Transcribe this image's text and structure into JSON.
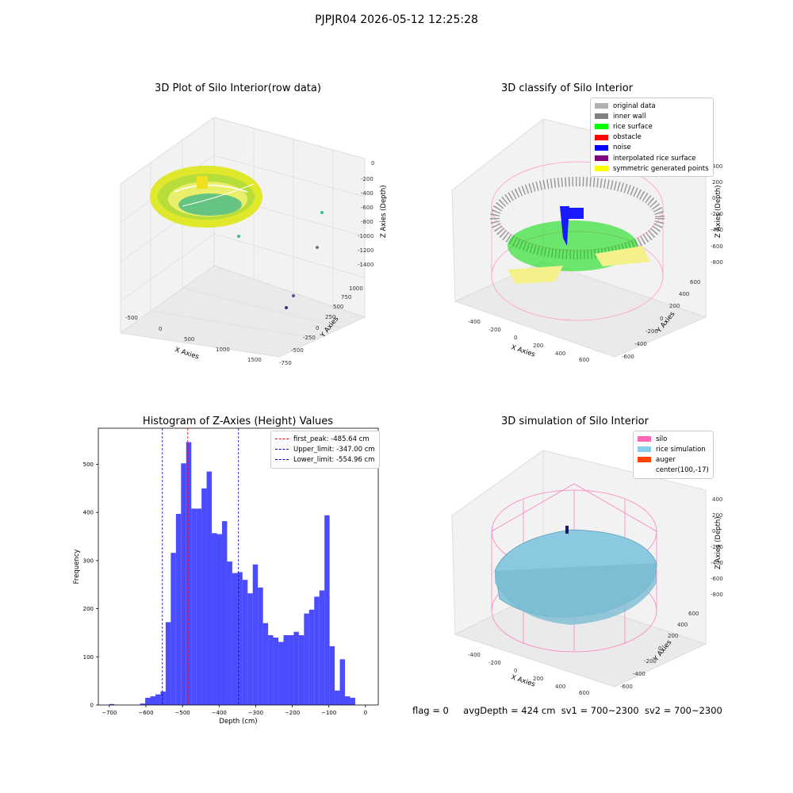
{
  "suptitle": "PJPJR04 2026-05-12 12:25:28",
  "panels": {
    "raw": {
      "title": "3D Plot of Silo Interior(row data)",
      "xlabel": "X Axies",
      "ylabel": "Y Axies",
      "zlabel": "Z Axies (Depth)",
      "xticks": [
        "-500",
        "0",
        "500",
        "1000",
        "1500"
      ],
      "yticks": [
        "-750",
        "-500",
        "-250",
        "0",
        "250",
        "500",
        "750",
        "1000"
      ],
      "zticks": [
        "0",
        "-200",
        "-400",
        "-600",
        "-800",
        "-1000",
        "-1200",
        "-1400"
      ]
    },
    "classify": {
      "title": "3D classify of Silo Interior",
      "xlabel": "X Axies",
      "ylabel": "Y Axies",
      "zlabel": "Z Axies (Depth)",
      "xticks": [
        "-400",
        "-200",
        "0",
        "200",
        "400",
        "600"
      ],
      "yticks": [
        "-600",
        "-400",
        "-200",
        "0",
        "200",
        "400",
        "600"
      ],
      "zticks": [
        "400",
        "200",
        "0",
        "-200",
        "-400",
        "-600",
        "-800"
      ],
      "legend": [
        {
          "label": "original data",
          "color": "#b0b0b0"
        },
        {
          "label": "inner wall",
          "color": "#808080"
        },
        {
          "label": "rice surface",
          "color": "#00ff00"
        },
        {
          "label": "obstacle",
          "color": "#ff0000"
        },
        {
          "label": "noise",
          "color": "#0000ff"
        },
        {
          "label": "interpolated rice surface",
          "color": "#800080"
        },
        {
          "label": "symmetric generated points",
          "color": "#ffff00"
        }
      ]
    },
    "simulation": {
      "title": "3D simulation of Silo Interior",
      "xlabel": "X Axies",
      "ylabel": "Y Axies",
      "zlabel": "Z Axies (Depth)",
      "xticks": [
        "-400",
        "-200",
        "0",
        "200",
        "400",
        "600"
      ],
      "yticks": [
        "-600",
        "-400",
        "-200",
        "0",
        "200",
        "400",
        "600"
      ],
      "zticks": [
        "400",
        "200",
        "0",
        "-200",
        "-400",
        "-600",
        "-800"
      ],
      "legend": [
        {
          "label": "silo",
          "color": "#ff69b4"
        },
        {
          "label": "rice simulation",
          "color": "#87ceeb"
        },
        {
          "label": "auger",
          "color": "#ff4500"
        },
        {
          "label": "center(100,-17)",
          "color": "#ffffff"
        }
      ]
    }
  },
  "chart_data": {
    "type": "bar",
    "title": "Histogram of Z-Axies (Height) Values",
    "xlabel": "Depth (cm)",
    "ylabel": "Frequency",
    "xlim": [
      -730,
      35
    ],
    "ylim": [
      0,
      575
    ],
    "xticks": [
      -700,
      -600,
      -500,
      -400,
      -300,
      -200,
      -100,
      0
    ],
    "yticks": [
      0,
      100,
      200,
      300,
      400,
      500
    ],
    "bar_color": "#0000ff",
    "bins": [
      {
        "x0": -700,
        "x1": -686,
        "v": 2
      },
      {
        "x0": -686,
        "x1": -672,
        "v": 0
      },
      {
        "x0": -672,
        "x1": -658,
        "v": 0
      },
      {
        "x0": -658,
        "x1": -644,
        "v": 0
      },
      {
        "x0": -644,
        "x1": -630,
        "v": 0
      },
      {
        "x0": -630,
        "x1": -616,
        "v": 0
      },
      {
        "x0": -616,
        "x1": -602,
        "v": 3
      },
      {
        "x0": -602,
        "x1": -588,
        "v": 15
      },
      {
        "x0": -588,
        "x1": -574,
        "v": 18
      },
      {
        "x0": -574,
        "x1": -560,
        "v": 22
      },
      {
        "x0": -560,
        "x1": -546,
        "v": 28
      },
      {
        "x0": -546,
        "x1": -532,
        "v": 172
      },
      {
        "x0": -532,
        "x1": -518,
        "v": 316
      },
      {
        "x0": -518,
        "x1": -504,
        "v": 397
      },
      {
        "x0": -504,
        "x1": -490,
        "v": 502
      },
      {
        "x0": -490,
        "x1": -476,
        "v": 546
      },
      {
        "x0": -476,
        "x1": -462,
        "v": 408
      },
      {
        "x0": -462,
        "x1": -448,
        "v": 408
      },
      {
        "x0": -448,
        "x1": -434,
        "v": 450
      },
      {
        "x0": -434,
        "x1": -420,
        "v": 485
      },
      {
        "x0": -420,
        "x1": -406,
        "v": 357
      },
      {
        "x0": -406,
        "x1": -392,
        "v": 355
      },
      {
        "x0": -392,
        "x1": -378,
        "v": 382
      },
      {
        "x0": -378,
        "x1": -364,
        "v": 298
      },
      {
        "x0": -364,
        "x1": -350,
        "v": 274
      },
      {
        "x0": -350,
        "x1": -336,
        "v": 276
      },
      {
        "x0": -336,
        "x1": -322,
        "v": 260
      },
      {
        "x0": -322,
        "x1": -308,
        "v": 232
      },
      {
        "x0": -308,
        "x1": -294,
        "v": 292
      },
      {
        "x0": -294,
        "x1": -280,
        "v": 244
      },
      {
        "x0": -280,
        "x1": -266,
        "v": 170
      },
      {
        "x0": -266,
        "x1": -252,
        "v": 145
      },
      {
        "x0": -252,
        "x1": -238,
        "v": 140
      },
      {
        "x0": -238,
        "x1": -224,
        "v": 131
      },
      {
        "x0": -224,
        "x1": -210,
        "v": 145
      },
      {
        "x0": -210,
        "x1": -196,
        "v": 145
      },
      {
        "x0": -196,
        "x1": -182,
        "v": 152
      },
      {
        "x0": -182,
        "x1": -168,
        "v": 145
      },
      {
        "x0": -168,
        "x1": -154,
        "v": 190
      },
      {
        "x0": -154,
        "x1": -140,
        "v": 198
      },
      {
        "x0": -140,
        "x1": -126,
        "v": 225
      },
      {
        "x0": -126,
        "x1": -112,
        "v": 238
      },
      {
        "x0": -112,
        "x1": -98,
        "v": 394
      },
      {
        "x0": -98,
        "x1": -84,
        "v": 122
      },
      {
        "x0": -84,
        "x1": -70,
        "v": 30
      },
      {
        "x0": -70,
        "x1": -56,
        "v": 95
      },
      {
        "x0": -56,
        "x1": -42,
        "v": 18
      },
      {
        "x0": -42,
        "x1": -28,
        "v": 15
      },
      {
        "x0": -28,
        "x1": -14,
        "v": 0
      }
    ],
    "lines": [
      {
        "label": "first_peak: -485.64 cm",
        "x": -485.64,
        "color": "#ff0000"
      },
      {
        "label": "Upper_limit: -347.00 cm",
        "x": -347.0,
        "color": "#0000aa"
      },
      {
        "label": "Lower_limit: -554.96 cm",
        "x": -554.96,
        "color": "#0000aa"
      }
    ]
  },
  "status": {
    "flag": "flag = 0",
    "avg": "avgDepth = 424 cm",
    "sv1": "sv1 = 700~2300",
    "sv2": "sv2 = 700~2300"
  }
}
